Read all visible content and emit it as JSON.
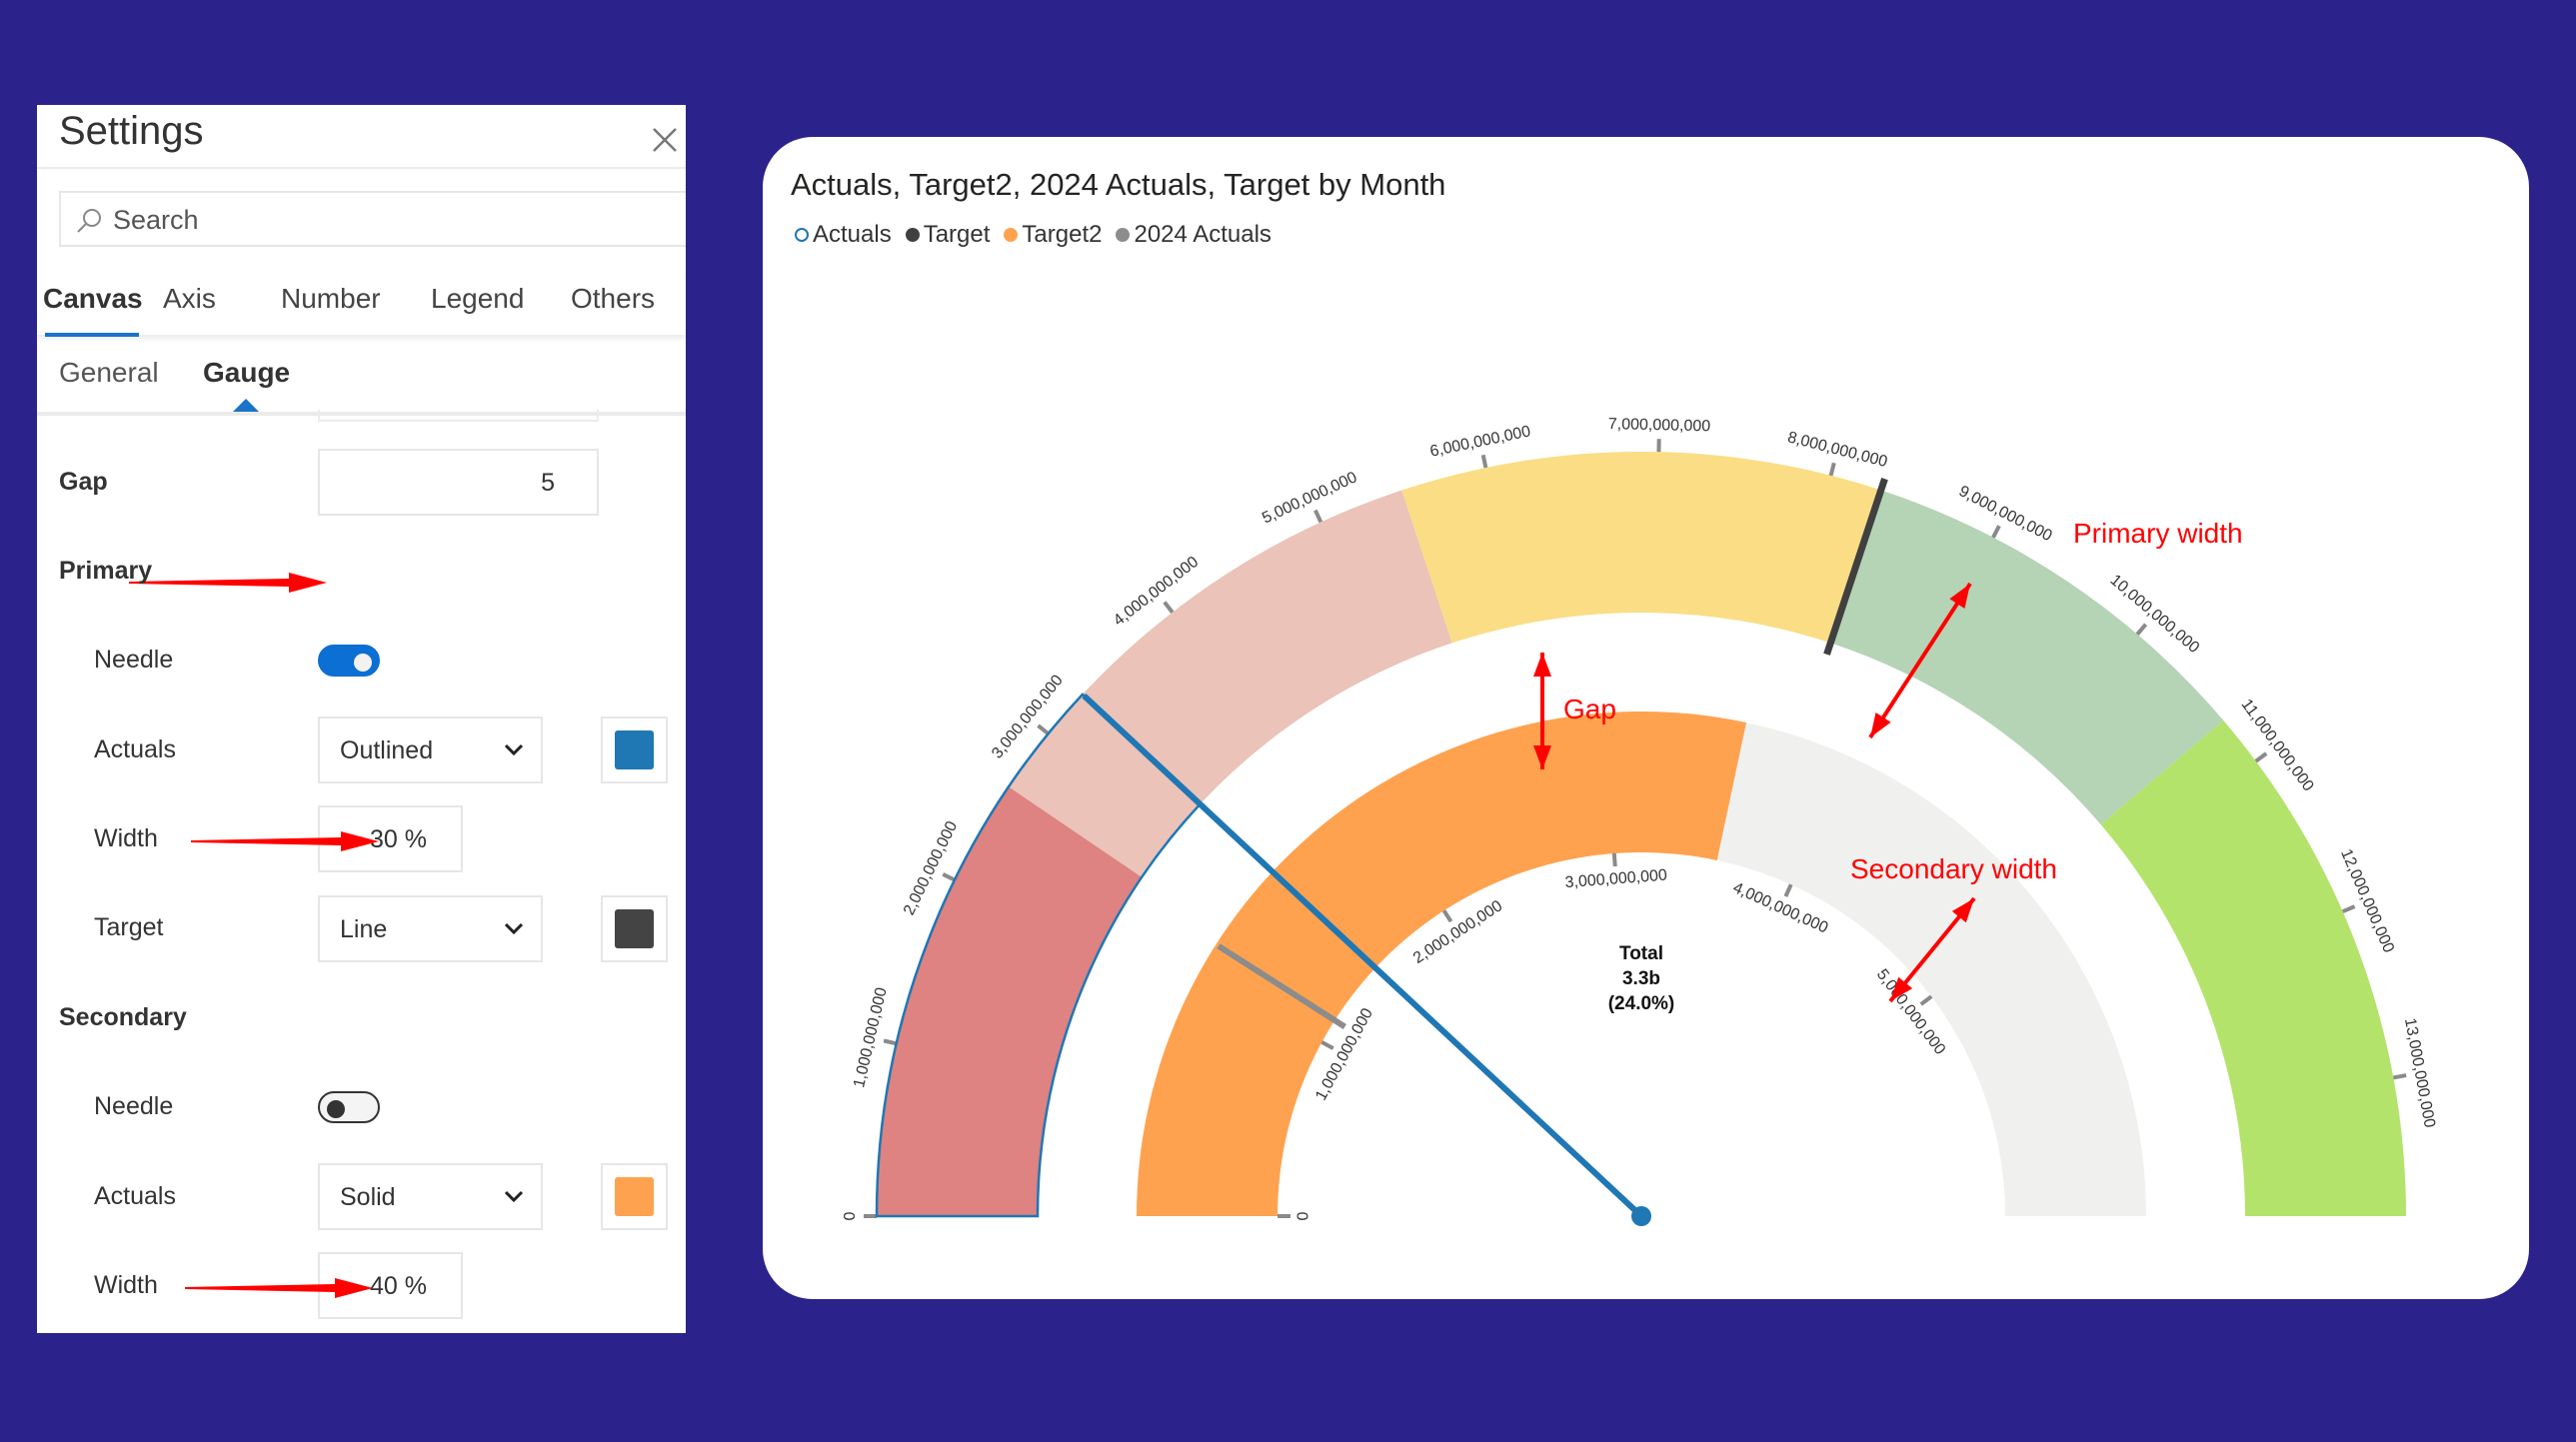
{
  "settings": {
    "title": "Settings",
    "search_placeholder": "Search",
    "tabs": [
      {
        "label": "Canvas",
        "active": true
      },
      {
        "label": "Axis",
        "active": false
      },
      {
        "label": "Number",
        "active": false
      },
      {
        "label": "Legend",
        "active": false
      },
      {
        "label": "Others",
        "active": false
      }
    ],
    "subtabs": [
      {
        "label": "General",
        "active": false
      },
      {
        "label": "Gauge",
        "active": true
      }
    ],
    "gap": {
      "label": "Gap",
      "value": "5"
    },
    "primary": {
      "label": "Primary",
      "needle": {
        "label": "Needle",
        "on": true
      },
      "actuals": {
        "label": "Actuals",
        "value": "Outlined",
        "color": "#1F77B4"
      },
      "width": {
        "label": "Width",
        "value": "30",
        "unit": "%"
      },
      "target": {
        "label": "Target",
        "value": "Line",
        "color": "#444444"
      }
    },
    "secondary": {
      "label": "Secondary",
      "needle": {
        "label": "Needle",
        "on": false
      },
      "actuals": {
        "label": "Actuals",
        "value": "Solid",
        "color": "#FFA24F"
      },
      "width": {
        "label": "Width",
        "value": "40",
        "unit": "%"
      }
    }
  },
  "annotations": {
    "gap": "Gap",
    "primary_width": "Primary width",
    "secondary_width": "Secondary width",
    "color": "#FF0000"
  },
  "chart_data": {
    "type": "gauge",
    "title": "Actuals, Target2, 2024 Actuals, Target by Month",
    "legend": [
      {
        "name": "Actuals",
        "color": "#1F77B4",
        "style": "outline"
      },
      {
        "name": "Target",
        "color": "#404040",
        "style": "solid"
      },
      {
        "name": "Target2",
        "color": "#FFA24F",
        "style": "solid"
      },
      {
        "name": "2024 Actuals",
        "color": "#8C8C8C",
        "style": "solid"
      }
    ],
    "legend_position": "top-left",
    "primary": {
      "min": 0,
      "max": 13800000000,
      "ticks": [
        0,
        1000000000,
        2000000000,
        3000000000,
        4000000000,
        5000000000,
        6000000000,
        7000000000,
        8000000000,
        9000000000,
        10000000000,
        11000000000,
        12000000000,
        13000000000
      ],
      "tick_labels": [
        "0",
        "1,000,000,000",
        "2,000,000,000",
        "3,000,000,000",
        "4,000,000,000",
        "5,000,000,000",
        "6,000,000,000",
        "7,000,000,000",
        "8,000,000,000",
        "9,000,000,000",
        "10,000,000,000",
        "11,000,000,000",
        "12,000,000,000",
        "13,000,000,000"
      ],
      "bands": [
        {
          "from": 0,
          "to": 2620000000,
          "color": "#DE8282"
        },
        {
          "from": 2620000000,
          "to": 5500000000,
          "color": "#EBC3B8"
        },
        {
          "from": 5500000000,
          "to": 8300000000,
          "color": "#FADD85"
        },
        {
          "from": 8300000000,
          "to": 10700000000,
          "color": "#B5D3B5"
        },
        {
          "from": 10700000000,
          "to": 13800000000,
          "color": "#B3E36B"
        }
      ],
      "actuals": 3300000000,
      "actuals_color": "#1F77B4",
      "target": 8300000000,
      "target_color": "#404040"
    },
    "secondary": {
      "min": 0,
      "max": 6300000000,
      "ticks": [
        0,
        1000000000,
        2000000000,
        3000000000,
        4000000000,
        5000000000
      ],
      "tick_labels": [
        "0",
        "1,000,000,000",
        "2,000,000,000",
        "3,000,000,000",
        "4,000,000,000",
        "5,000,000,000"
      ],
      "track_color": "#F0F0EF",
      "target2": 3570000000,
      "target2_color": "#FFA24F",
      "actuals_2024": 1140000000,
      "actuals_2024_color": "#8C8C8C"
    },
    "center_label": {
      "title": "Total",
      "value": "3.3b",
      "percent": "(24.0%)"
    }
  }
}
